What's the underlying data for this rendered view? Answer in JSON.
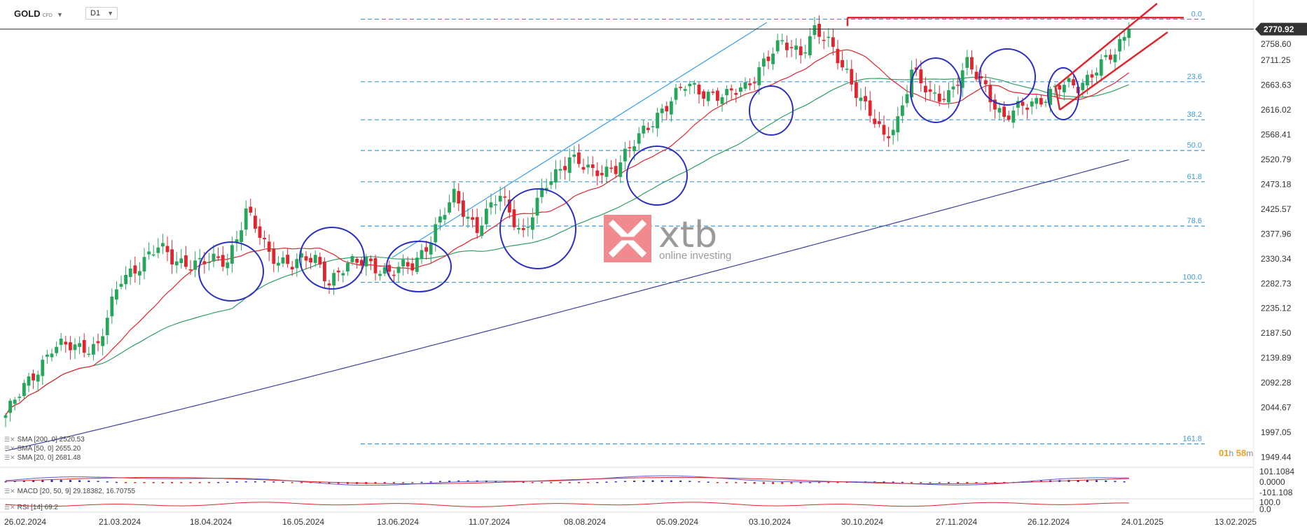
{
  "header": {
    "symbol": "GOLD",
    "symbol_type": "CFD",
    "timeframe": "D1"
  },
  "watermark": {
    "brand": "xtb",
    "tagline": "online investing"
  },
  "current_price": "2770.92",
  "countdown": {
    "hours": "01",
    "h_unit": "h",
    "minutes": "58",
    "m_unit": "m"
  },
  "indicators": {
    "sma200": "SMA [200, 0] 2520.53",
    "sma50": "SMA [50, 0] 2655.20",
    "sma20": "SMA [20, 0] 2681.48",
    "macd": "MACD [20, 50, 9] 29.18382, 16.70755",
    "rsi": "RSI [14] 69.2"
  },
  "macd_axis": [
    "101.1084",
    "0.0000",
    "-101.108"
  ],
  "rsi_axis": [
    "100.0",
    "0.0"
  ],
  "colors": {
    "up": "#26a65b",
    "down": "#e0252e",
    "sma20": "#e0252e",
    "sma50": "#2e9e64",
    "sma200": "#3b3f9c",
    "fib": "#3a9ad9",
    "circle": "#2b2fc0",
    "channel": "#e0252e"
  },
  "chart_data": {
    "type": "candlestick",
    "price_axis": {
      "ylim": [
        1930,
        2800
      ],
      "ticks": [
        "2758.60",
        "2711.25",
        "2663.63",
        "2616.02",
        "2568.41",
        "2520.79",
        "2473.18",
        "2425.57",
        "2377.96",
        "2330.34",
        "2282.73",
        "2235.12",
        "2187.50",
        "2139.89",
        "2092.28",
        "2044.67",
        "1997.05",
        "1949.44"
      ]
    },
    "x_labels": [
      "26.02.2024",
      "21.03.2024",
      "18.04.2024",
      "16.05.2024",
      "13.06.2024",
      "11.07.2024",
      "08.08.2024",
      "05.09.2024",
      "03.10.2024",
      "30.10.2024",
      "27.11.2024",
      "26.12.2024",
      "24.01.2025",
      "13.02.2025"
    ],
    "close_anchors": [
      [
        0,
        2030
      ],
      [
        10,
        2160
      ],
      [
        15,
        2160
      ],
      [
        20,
        2165
      ],
      [
        25,
        2290
      ],
      [
        30,
        2330
      ],
      [
        33,
        2350
      ],
      [
        36,
        2330
      ],
      [
        42,
        2320
      ],
      [
        48,
        2330
      ],
      [
        52,
        2420
      ],
      [
        57,
        2340
      ],
      [
        62,
        2320
      ],
      [
        67,
        2330
      ],
      [
        70,
        2290
      ],
      [
        73,
        2310
      ],
      [
        78,
        2330
      ],
      [
        83,
        2300
      ],
      [
        88,
        2320
      ],
      [
        92,
        2370
      ],
      [
        97,
        2450
      ],
      [
        102,
        2390
      ],
      [
        107,
        2450
      ],
      [
        112,
        2380
      ],
      [
        117,
        2470
      ],
      [
        122,
        2530
      ],
      [
        127,
        2490
      ],
      [
        132,
        2510
      ],
      [
        137,
        2560
      ],
      [
        142,
        2620
      ],
      [
        147,
        2660
      ],
      [
        152,
        2650
      ],
      [
        156,
        2640
      ],
      [
        160,
        2660
      ],
      [
        164,
        2710
      ],
      [
        168,
        2740
      ],
      [
        172,
        2730
      ],
      [
        175,
        2770
      ],
      [
        178,
        2740
      ],
      [
        182,
        2690
      ],
      [
        186,
        2620
      ],
      [
        190,
        2560
      ],
      [
        193,
        2600
      ],
      [
        196,
        2690
      ],
      [
        200,
        2640
      ],
      [
        204,
        2650
      ],
      [
        208,
        2700
      ],
      [
        212,
        2660
      ],
      [
        216,
        2600
      ],
      [
        220,
        2620
      ],
      [
        224,
        2640
      ],
      [
        228,
        2660
      ],
      [
        232,
        2660
      ],
      [
        236,
        2700
      ],
      [
        240,
        2720
      ],
      [
        243,
        2771
      ]
    ],
    "sma20_last": 2681.48,
    "sma50_last": 2655.2,
    "sma200_last": 2520.53,
    "fibonacci": [
      {
        "level": "0.0",
        "price": 2790
      },
      {
        "level": "23.6",
        "price": 2670
      },
      {
        "level": "38.2",
        "price": 2597
      },
      {
        "level": "50.0",
        "price": 2538
      },
      {
        "level": "61.8",
        "price": 2478
      },
      {
        "level": "78.6",
        "price": 2393
      },
      {
        "level": "100.0",
        "price": 2285
      },
      {
        "level": "161.8",
        "price": 1975
      }
    ],
    "resistance": 2793
  }
}
